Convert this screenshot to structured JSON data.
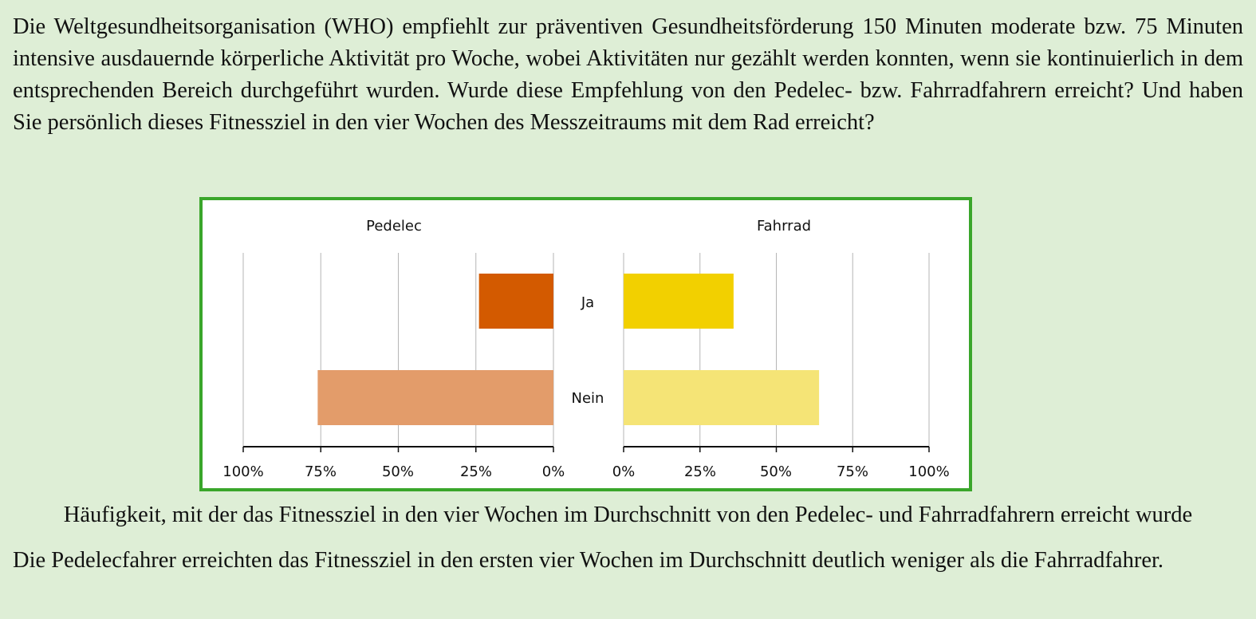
{
  "intro_text": "Die Weltgesundheitsorganisation (WHO) empfiehlt zur präventiven Gesundheitsförderung 150 Minuten moderate bzw. 75 Minuten intensive ausdauernde körperliche Aktivität pro Woche, wobei Aktivitäten nur gezählt werden konnten, wenn sie kontinuierlich in dem entsprechenden Bereich durchgeführt wurden. Wurde diese Empfehlung von den Pedelec- bzw. Fahrradfahrern erreicht? Und haben Sie persönlich dieses Fitnessziel in den vier Wochen des Messzeitraums mit dem Rad erreicht?",
  "caption": "Häufigkeit, mit der das Fitnessziel in den vier Wochen im Durchschnitt von den Pedelec- und Fahrradfahrern erreicht wurde",
  "conclusion": "Die Pedelecfahrer erreichten das Fitnessziel in den ersten vier Wochen im Durchschnitt deutlich weniger als die Fahrradfahrer.",
  "colors": {
    "frame": "#3aa62b",
    "pedelec_ja": "#d35a00",
    "pedelec_nein": "#e39c6a",
    "fahrrad_ja": "#f2d000",
    "fahrrad_nein": "#f5e476",
    "grid": "#b5b5b5",
    "axis": "#111111"
  },
  "chart_data": [
    {
      "type": "bar",
      "orientation": "horizontal",
      "direction": "reversed",
      "title": "Pedelec",
      "categories": [
        "Ja",
        "Nein"
      ],
      "values": [
        24,
        76
      ],
      "unit": "%",
      "xlim": [
        0,
        100
      ],
      "ticks": [
        "100%",
        "75%",
        "50%",
        "25%",
        "0%"
      ],
      "grid": true
    },
    {
      "type": "bar",
      "orientation": "horizontal",
      "direction": "normal",
      "title": "Fahrrad",
      "categories": [
        "Ja",
        "Nein"
      ],
      "values": [
        36,
        64
      ],
      "unit": "%",
      "xlim": [
        0,
        100
      ],
      "ticks": [
        "0%",
        "25%",
        "50%",
        "75%",
        "100%"
      ],
      "grid": true
    }
  ]
}
